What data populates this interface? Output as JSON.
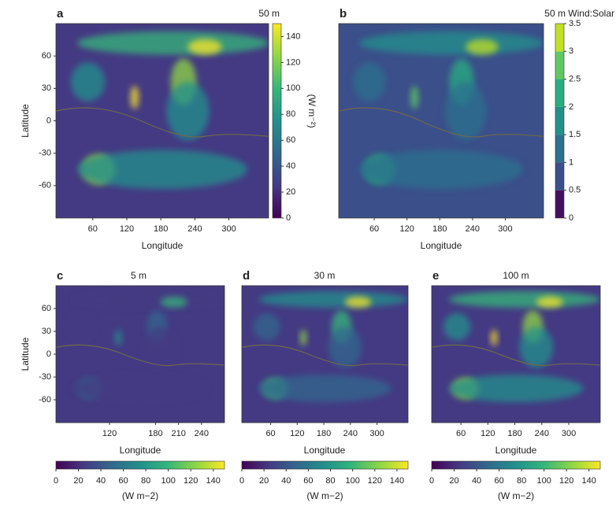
{
  "chart_data": [
    {
      "type": "map",
      "panel": "a",
      "title": "50 m",
      "xlabel": "Longitude",
      "ylabel": "Latitude",
      "xlim": [
        -5,
        370
      ],
      "ylim": [
        -90,
        90
      ],
      "xticks": [
        60,
        120,
        180,
        240,
        300
      ],
      "yticks": [
        60,
        30,
        0,
        -30,
        -60
      ],
      "colorbar": {
        "orientation": "vertical",
        "lim": [
          0,
          150
        ],
        "ticks": [
          0,
          20,
          40,
          60,
          80,
          100,
          120,
          140
        ],
        "label": "(W m⁻²)",
        "colors": [
          "#440154",
          "#443a83",
          "#31688e",
          "#21918c",
          "#35b779",
          "#90d743",
          "#fde725"
        ]
      }
    },
    {
      "type": "map",
      "panel": "b",
      "title": "50 m Wind:Solar",
      "xlabel": "Longitude",
      "xlim": [
        -5,
        370
      ],
      "ylim": [
        -90,
        90
      ],
      "xticks": [
        60,
        120,
        180,
        240,
        300
      ],
      "colorbar": {
        "orientation": "vertical",
        "lim": [
          0,
          3.5
        ],
        "ticks": [
          0,
          0.5,
          1.0,
          1.5,
          2.0,
          2.5,
          3.0,
          3.5
        ],
        "discrete": true,
        "colors": [
          "#450f5e",
          "#3b4f8a",
          "#2c718e",
          "#21918c",
          "#28ae80",
          "#5ec962",
          "#c2df23"
        ]
      }
    },
    {
      "type": "map",
      "panel": "c",
      "title": "5 m",
      "xlabel": "Longitude",
      "ylabel": "Latitude",
      "xlim": [
        50,
        270
      ],
      "ylim": [
        -90,
        90
      ],
      "xticks": [
        120,
        180,
        210,
        240
      ],
      "yticks": [
        60,
        30,
        0,
        -30,
        -60
      ],
      "colorbar": {
        "orientation": "horizontal",
        "lim": [
          0,
          150
        ],
        "ticks": [
          0,
          20,
          40,
          60,
          80,
          100,
          120,
          140
        ],
        "label": "(W m−2)",
        "colors": [
          "#440154",
          "#443a83",
          "#31688e",
          "#21918c",
          "#35b779",
          "#90d743",
          "#fde725"
        ]
      }
    },
    {
      "type": "map",
      "panel": "d",
      "title": "30 m",
      "xlabel": "Longitude",
      "xlim": [
        -5,
        370
      ],
      "ylim": [
        -90,
        90
      ],
      "xticks": [
        60,
        120,
        180,
        240,
        300
      ],
      "colorbar": {
        "orientation": "horizontal",
        "lim": [
          0,
          150
        ],
        "ticks": [
          0,
          20,
          40,
          60,
          80,
          100,
          120,
          140
        ],
        "label": "(W m−2)",
        "colors": [
          "#440154",
          "#443a83",
          "#31688e",
          "#21918c",
          "#35b779",
          "#90d743",
          "#fde725"
        ]
      }
    },
    {
      "type": "map",
      "panel": "e",
      "title": "100 m",
      "xlabel": "Longitude",
      "xlim": [
        -5,
        370
      ],
      "ylim": [
        -90,
        90
      ],
      "xticks": [
        60,
        120,
        180,
        240,
        300
      ],
      "colorbar": {
        "orientation": "horizontal",
        "lim": [
          0,
          150
        ],
        "ticks": [
          0,
          20,
          40,
          60,
          80,
          100,
          120,
          140
        ],
        "label": "(W m−2)",
        "colors": [
          "#440154",
          "#443a83",
          "#31688e",
          "#21918c",
          "#35b779",
          "#90d743",
          "#fde725"
        ]
      }
    }
  ]
}
